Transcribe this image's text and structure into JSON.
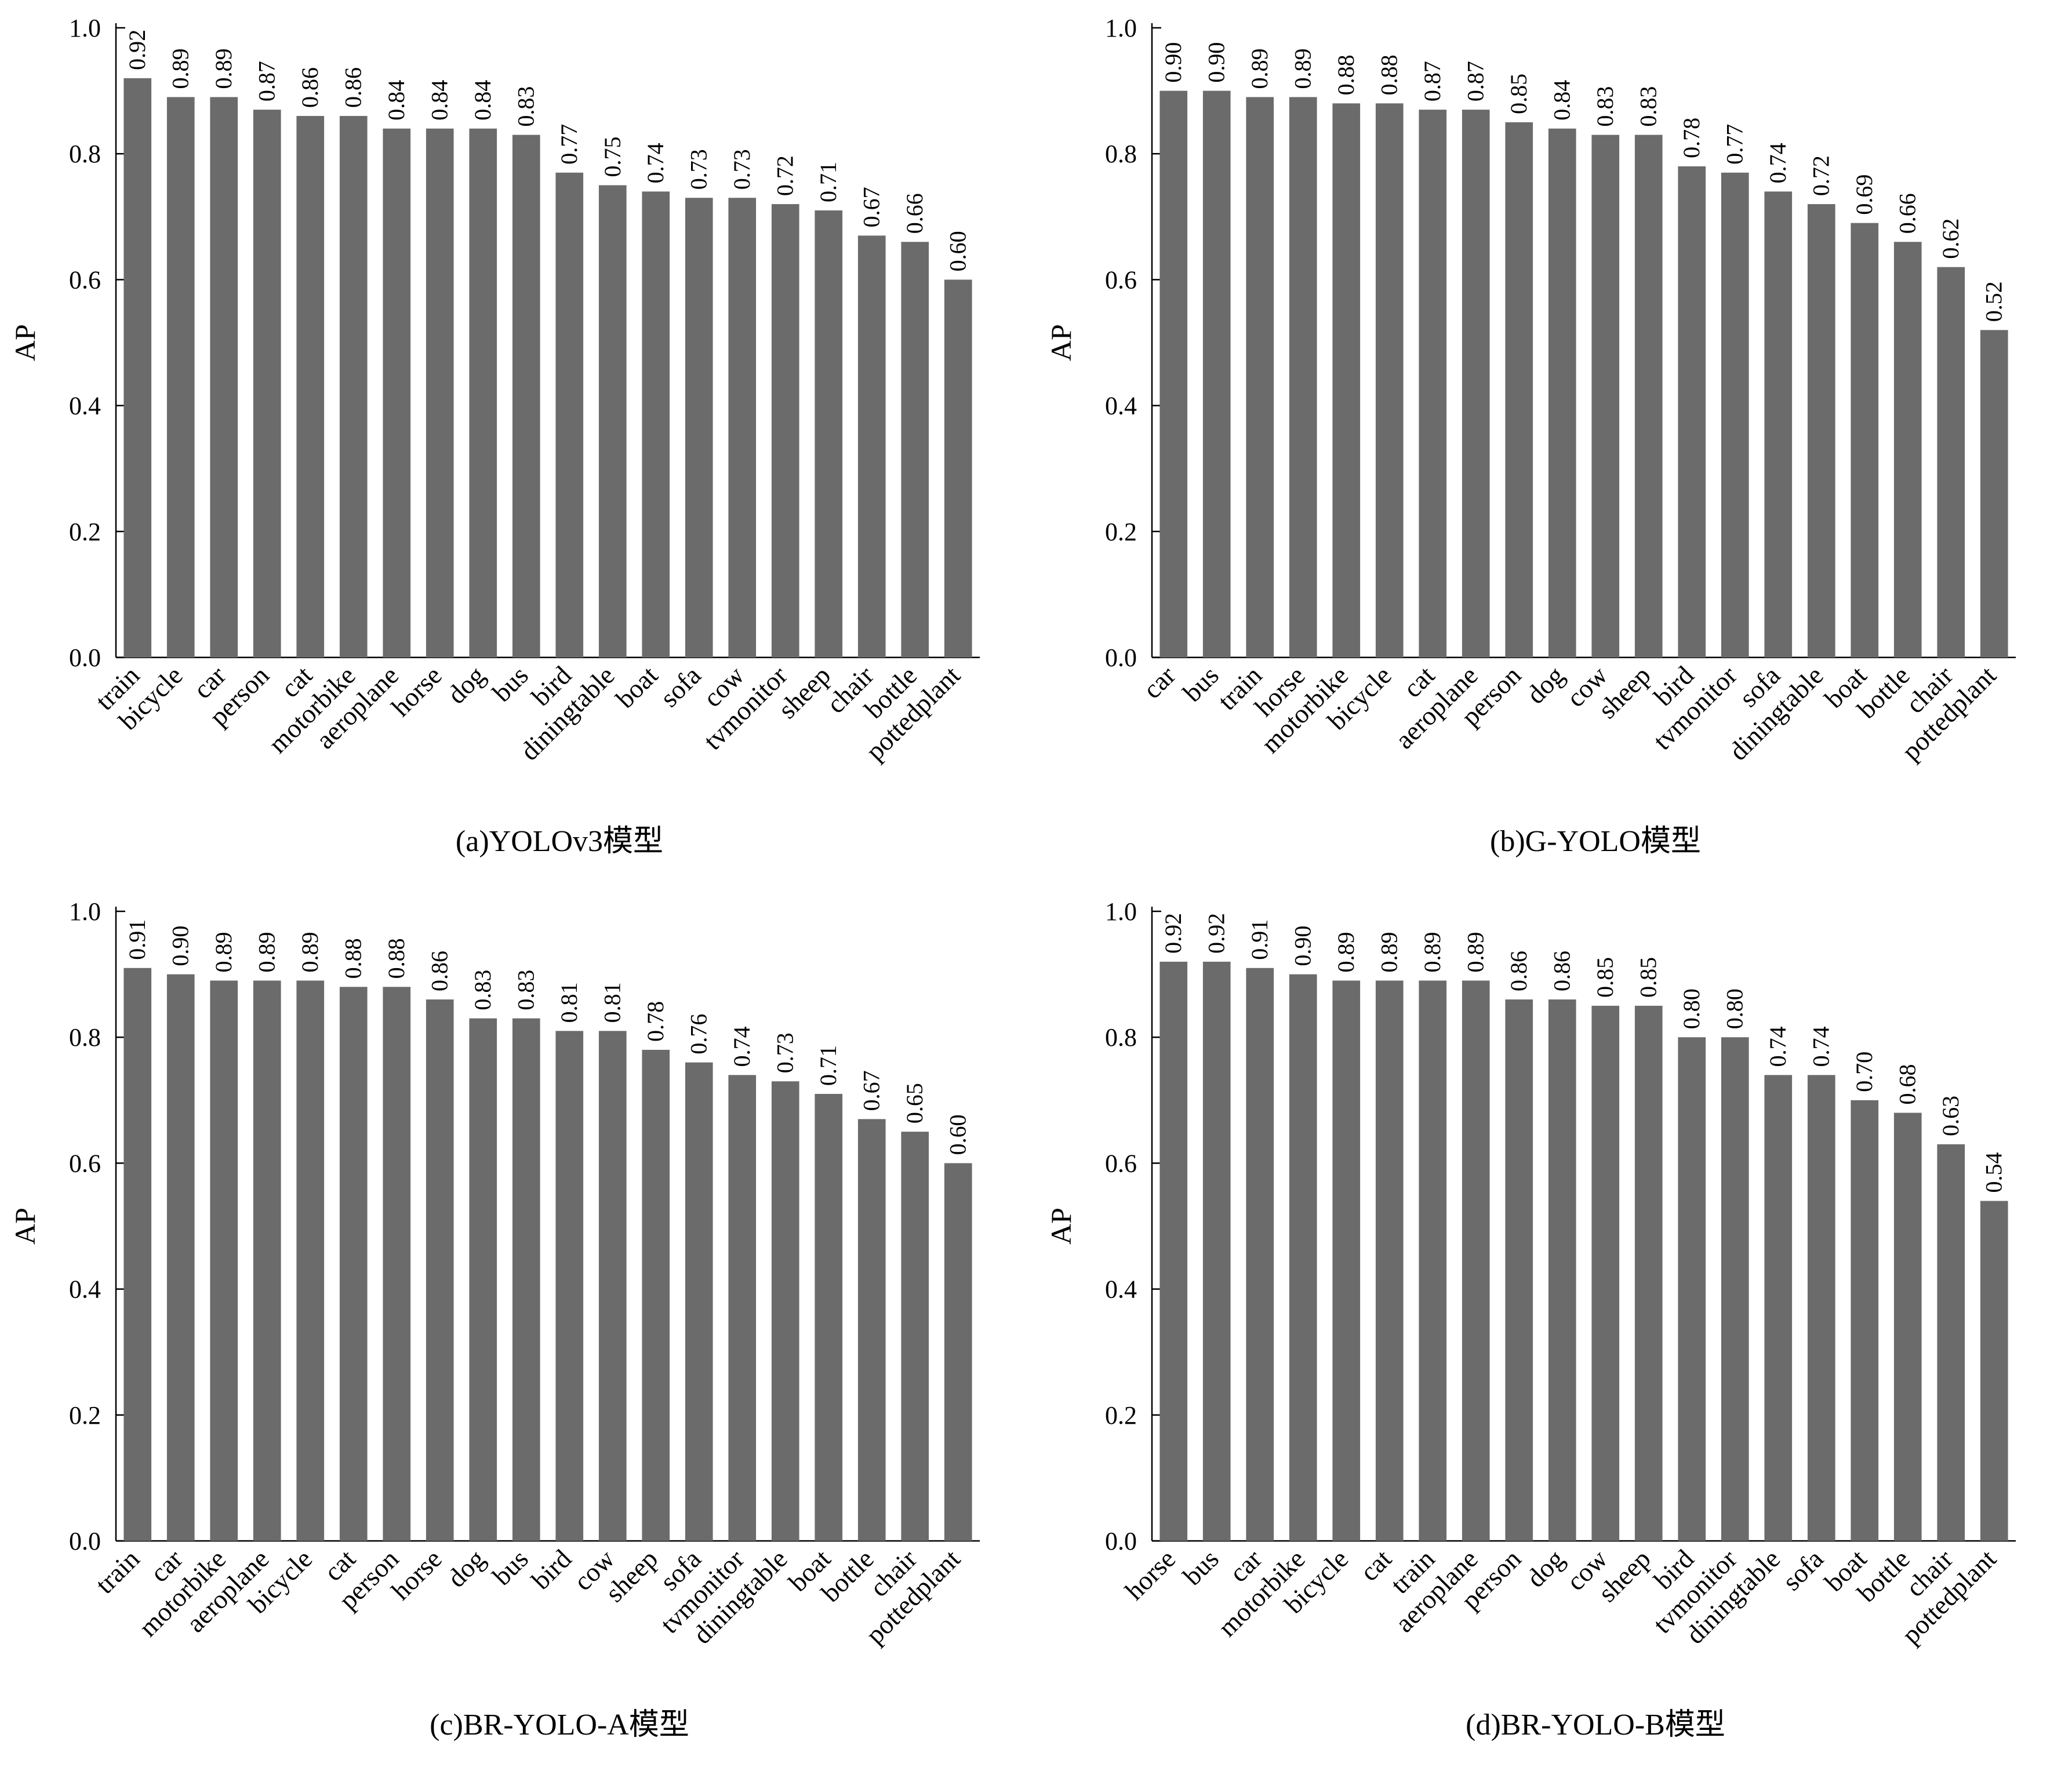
{
  "chart_data": [
    {
      "type": "bar",
      "title": "(a)YOLOv3模型",
      "ylabel": "AP",
      "ylim": [
        0,
        1.0
      ],
      "yticks": [
        "0.0",
        "0.2",
        "0.4",
        "0.6",
        "0.8",
        "1.0"
      ],
      "categories": [
        "train",
        "bicycle",
        "car",
        "person",
        "cat",
        "motorbike",
        "aeroplane",
        "horse",
        "dog",
        "bus",
        "bird",
        "diningtable",
        "boat",
        "sofa",
        "cow",
        "tvmonitor",
        "sheep",
        "chair",
        "bottle",
        "pottedplant"
      ],
      "values": [
        0.92,
        0.89,
        0.89,
        0.87,
        0.86,
        0.86,
        0.84,
        0.84,
        0.84,
        0.83,
        0.77,
        0.75,
        0.74,
        0.73,
        0.73,
        0.72,
        0.71,
        0.67,
        0.66,
        0.6
      ],
      "labels": [
        "0.92",
        "0.89",
        "0.89",
        "0.87",
        "0.86",
        "0.86",
        "0.84",
        "0.84",
        "0.84",
        "0.83",
        "0.77",
        "0.75",
        "0.74",
        "0.73",
        "0.73",
        "0.72",
        "0.71",
        "0.67",
        "0.66",
        "0.60"
      ],
      "color": "#6b6b6b"
    },
    {
      "type": "bar",
      "title": "(b)G-YOLO模型",
      "ylabel": "AP",
      "ylim": [
        0,
        1.0
      ],
      "yticks": [
        "0.0",
        "0.2",
        "0.4",
        "0.6",
        "0.8",
        "1.0"
      ],
      "categories": [
        "car",
        "bus",
        "train",
        "horse",
        "motorbike",
        "bicycle",
        "cat",
        "aeroplane",
        "person",
        "dog",
        "cow",
        "sheep",
        "bird",
        "tvmonitor",
        "sofa",
        "diningtable",
        "boat",
        "bottle",
        "chair",
        "pottedplant"
      ],
      "values": [
        0.9,
        0.9,
        0.89,
        0.89,
        0.88,
        0.88,
        0.87,
        0.87,
        0.85,
        0.84,
        0.83,
        0.83,
        0.78,
        0.77,
        0.74,
        0.72,
        0.69,
        0.66,
        0.62,
        0.52
      ],
      "labels": [
        "0.90",
        "0.90",
        "0.89",
        "0.89",
        "0.88",
        "0.88",
        "0.87",
        "0.87",
        "0.85",
        "0.84",
        "0.83",
        "0.83",
        "0.78",
        "0.77",
        "0.74",
        "0.72",
        "0.69",
        "0.66",
        "0.62",
        "0.52"
      ],
      "color": "#6b6b6b"
    },
    {
      "type": "bar",
      "title": "(c)BR-YOLO-A模型",
      "ylabel": "AP",
      "ylim": [
        0,
        1.0
      ],
      "yticks": [
        "0.0",
        "0.2",
        "0.4",
        "0.6",
        "0.8",
        "1.0"
      ],
      "categories": [
        "train",
        "car",
        "motorbike",
        "aeroplane",
        "bicycle",
        "cat",
        "person",
        "horse",
        "dog",
        "bus",
        "bird",
        "cow",
        "sheep",
        "sofa",
        "tvmonitor",
        "diningtable",
        "boat",
        "bottle",
        "chair",
        "pottedplant"
      ],
      "values": [
        0.91,
        0.9,
        0.89,
        0.89,
        0.89,
        0.88,
        0.88,
        0.86,
        0.83,
        0.83,
        0.81,
        0.81,
        0.78,
        0.76,
        0.74,
        0.73,
        0.71,
        0.67,
        0.65,
        0.6
      ],
      "labels": [
        "0.91",
        "0.90",
        "0.89",
        "0.89",
        "0.89",
        "0.88",
        "0.88",
        "0.86",
        "0.83",
        "0.83",
        "0.81",
        "0.81",
        "0.78",
        "0.76",
        "0.74",
        "0.73",
        "0.71",
        "0.67",
        "0.65",
        "0.60"
      ],
      "color": "#6b6b6b"
    },
    {
      "type": "bar",
      "title": "(d)BR-YOLO-B模型",
      "ylabel": "AP",
      "ylim": [
        0,
        1.0
      ],
      "yticks": [
        "0.0",
        "0.2",
        "0.4",
        "0.6",
        "0.8",
        "1.0"
      ],
      "categories": [
        "horse",
        "bus",
        "car",
        "motorbike",
        "bicycle",
        "cat",
        "train",
        "aeroplane",
        "person",
        "dog",
        "cow",
        "sheep",
        "bird",
        "tvmonitor",
        "diningtable",
        "sofa",
        "boat",
        "bottle",
        "chair",
        "pottedplant"
      ],
      "values": [
        0.92,
        0.92,
        0.91,
        0.9,
        0.89,
        0.89,
        0.89,
        0.89,
        0.86,
        0.86,
        0.85,
        0.85,
        0.8,
        0.8,
        0.74,
        0.74,
        0.7,
        0.68,
        0.63,
        0.54
      ],
      "labels": [
        "0.92",
        "0.92",
        "0.91",
        "0.90",
        "0.89",
        "0.89",
        "0.89",
        "0.89",
        "0.86",
        "0.86",
        "0.85",
        "0.85",
        "0.80",
        "0.80",
        "0.74",
        "0.74",
        "0.70",
        "0.68",
        "0.63",
        "0.54"
      ],
      "color": "#6b6b6b"
    }
  ]
}
